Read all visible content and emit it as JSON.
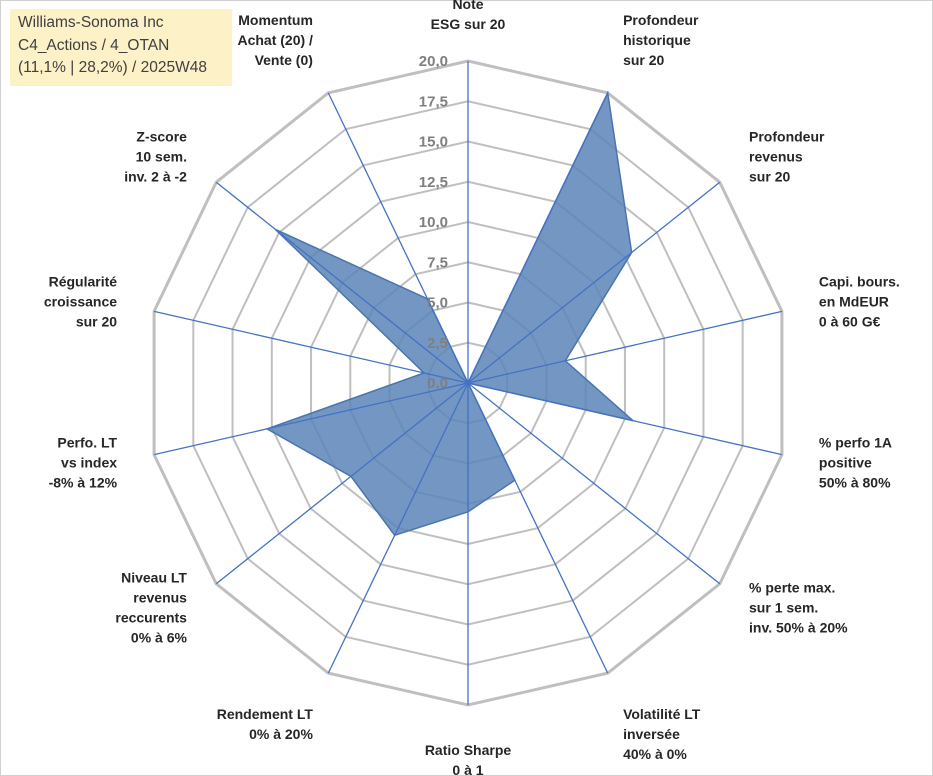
{
  "title_box": {
    "line1": "Williams-Sonoma Inc",
    "line2": "C4_Actions / 4_OTAN",
    "line3": "(11,1% | 28,2%) / 2025W48"
  },
  "colors": {
    "series_fill": "#5b84b8",
    "series_stroke": "#4a74ad",
    "spoke": "#4472c4",
    "grid": "#bfbfbf",
    "title_box_bg": "#fdf1c8"
  },
  "chart_data": {
    "type": "radar",
    "title": "Williams-Sonoma Inc",
    "range": [
      0,
      20
    ],
    "ticks": [
      "0,0",
      "2,5",
      "5,0",
      "7,5",
      "10,0",
      "12,5",
      "15,0",
      "17,5",
      "20,0"
    ],
    "tick_values": [
      0,
      2.5,
      5,
      7.5,
      10,
      12.5,
      15,
      17.5,
      20
    ],
    "categories": [
      [
        "Note",
        "ESG sur 20"
      ],
      [
        "Profondeur",
        "historique",
        "sur 20"
      ],
      [
        "Profondeur",
        "revenus",
        "sur 20"
      ],
      [
        "Capi. bours.",
        "en MdEUR",
        "0 à 60 G€"
      ],
      [
        "% perfo 1A",
        "positive",
        "50% à 80%"
      ],
      [
        "% perte max.",
        "sur 1 sem.",
        "inv. 50% à 20%"
      ],
      [
        "Volatilité LT",
        "inversée",
        "40% à 0%"
      ],
      [
        "Ratio Sharpe",
        "0 à 1"
      ],
      [
        "Rendement LT",
        "0% à 20%"
      ],
      [
        "Niveau LT",
        "revenus",
        "reccurents",
        "0% à 6%"
      ],
      [
        "Perfo. LT",
        "vs index",
        "-8% à 12%"
      ],
      [
        "Régularité",
        "croissance",
        "sur 20"
      ],
      [
        "Z-score",
        "10 sem.",
        "inv. 2 à -2"
      ],
      [
        "Momentum",
        "Achat (20) /",
        "Vente (0)"
      ]
    ],
    "series": [
      {
        "name": "Williams-Sonoma Inc",
        "values": [
          0.0,
          20.0,
          13.0,
          6.2,
          10.5,
          0.0,
          6.7,
          8.0,
          10.5,
          9.3,
          12.8,
          2.8,
          15.3,
          5.8
        ]
      }
    ]
  }
}
